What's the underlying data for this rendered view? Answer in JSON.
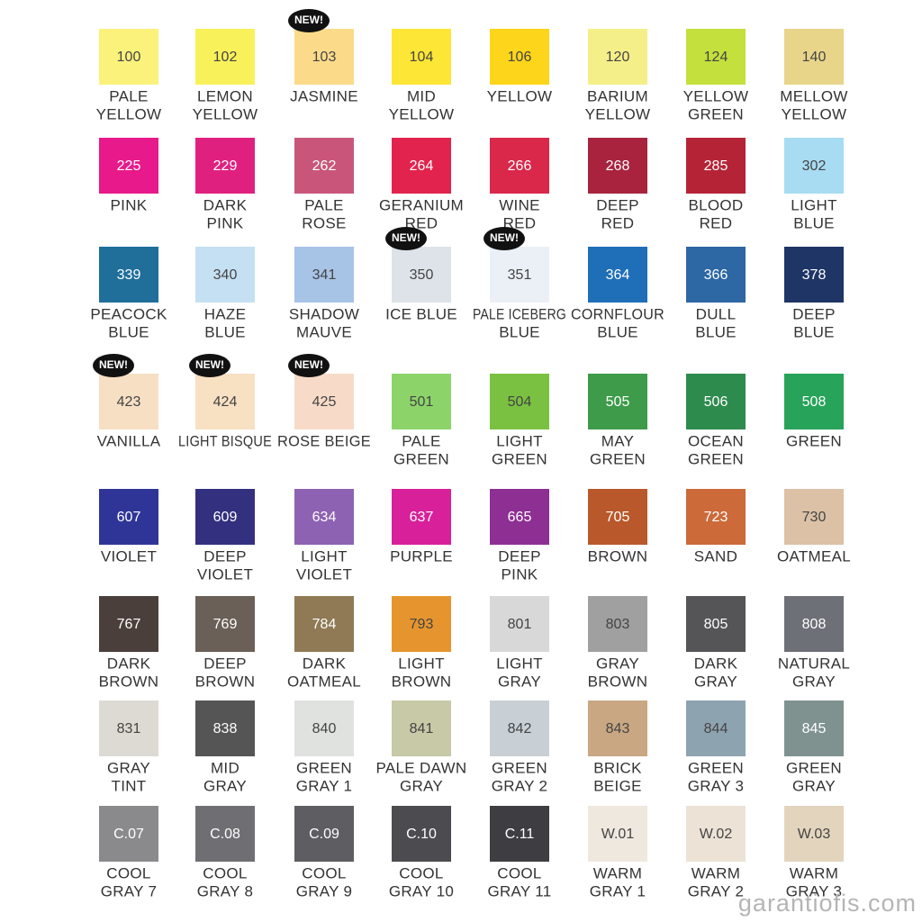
{
  "rows": [
    [
      {
        "code": "100",
        "name": [
          "PALE",
          "YELLOW"
        ],
        "color": "#fbf27c"
      },
      {
        "code": "102",
        "name": [
          "LEMON",
          "YELLOW"
        ],
        "color": "#f9f15a"
      },
      {
        "code": "103",
        "name": [
          "JASMINE"
        ],
        "color": "#fbdb8a",
        "badge": "NEW!"
      },
      {
        "code": "104",
        "name": [
          "MID",
          "YELLOW"
        ],
        "color": "#fde635"
      },
      {
        "code": "106",
        "name": [
          "YELLOW"
        ],
        "color": "#fdd51a"
      },
      {
        "code": "120",
        "name": [
          "BARIUM",
          "YELLOW"
        ],
        "color": "#f5ef8a"
      },
      {
        "code": "124",
        "name": [
          "YELLOW",
          "GREEN"
        ],
        "color": "#c3e03c"
      },
      {
        "code": "140",
        "name": [
          "MELLOW",
          "YELLOW"
        ],
        "color": "#e8d58a"
      }
    ],
    [
      {
        "code": "225",
        "name": [
          "PINK"
        ],
        "color": "#e8198b"
      },
      {
        "code": "229",
        "name": [
          "DARK",
          "PINK"
        ],
        "color": "#e0207f"
      },
      {
        "code": "262",
        "name": [
          "PALE",
          "ROSE"
        ],
        "color": "#c9567a"
      },
      {
        "code": "264",
        "name": [
          "GERANIUM",
          "RED"
        ],
        "color": "#e2234d"
      },
      {
        "code": "266",
        "name": [
          "WINE",
          "RED"
        ],
        "color": "#d9284a"
      },
      {
        "code": "268",
        "name": [
          "DEEP",
          "RED"
        ],
        "color": "#a9233f"
      },
      {
        "code": "285",
        "name": [
          "BLOOD",
          "RED"
        ],
        "color": "#b52436"
      },
      {
        "code": "302",
        "name": [
          "LIGHT",
          "BLUE"
        ],
        "color": "#a7dcf3"
      }
    ],
    [
      {
        "code": "339",
        "name": [
          "PEACOCK",
          "BLUE"
        ],
        "color": "#1f6f9a"
      },
      {
        "code": "340",
        "name": [
          "HAZE",
          "BLUE"
        ],
        "color": "#c5e0f2"
      },
      {
        "code": "341",
        "name": [
          "SHADOW",
          "MAUVE"
        ],
        "color": "#a7c3e6"
      },
      {
        "code": "350",
        "name": [
          "ICE BLUE"
        ],
        "color": "#dde3e8",
        "badge": "NEW!"
      },
      {
        "code": "351",
        "name": [
          "PALE ICEBERG",
          "BLUE"
        ],
        "color": "#eaf0f6",
        "badge": "NEW!"
      },
      {
        "code": "364",
        "name": [
          "CORNFLOUR",
          "BLUE"
        ],
        "color": "#1f6fb8"
      },
      {
        "code": "366",
        "name": [
          "DULL",
          "BLUE"
        ],
        "color": "#2d67a4"
      },
      {
        "code": "378",
        "name": [
          "DEEP",
          "BLUE"
        ],
        "color": "#1f3566"
      }
    ],
    [
      {
        "code": "423",
        "name": [
          "VANILLA"
        ],
        "color": "#f6dfc3",
        "badge": "NEW!"
      },
      {
        "code": "424",
        "name": [
          "LIGHT BISQUE"
        ],
        "color": "#f8e0c2",
        "badge": "NEW!"
      },
      {
        "code": "425",
        "name": [
          "ROSE BEIGE"
        ],
        "color": "#f7dbc8",
        "badge": "NEW!"
      },
      {
        "code": "501",
        "name": [
          "PALE",
          "GREEN"
        ],
        "color": "#8cd46a"
      },
      {
        "code": "504",
        "name": [
          "LIGHT",
          "GREEN"
        ],
        "color": "#7ac142"
      },
      {
        "code": "505",
        "name": [
          "MAY",
          "GREEN"
        ],
        "color": "#3d9b4a"
      },
      {
        "code": "506",
        "name": [
          "OCEAN",
          "GREEN"
        ],
        "color": "#2e8b4e"
      },
      {
        "code": "508",
        "name": [
          "GREEN"
        ],
        "color": "#27a35a"
      }
    ],
    [
      {
        "code": "607",
        "name": [
          "VIOLET"
        ],
        "color": "#2f3597"
      },
      {
        "code": "609",
        "name": [
          "DEEP",
          "VIOLET"
        ],
        "color": "#33307f"
      },
      {
        "code": "634",
        "name": [
          "LIGHT",
          "VIOLET"
        ],
        "color": "#8e62b2"
      },
      {
        "code": "637",
        "name": [
          "PURPLE"
        ],
        "color": "#d8209a"
      },
      {
        "code": "665",
        "name": [
          "DEEP",
          "PINK"
        ],
        "color": "#8e2f94"
      },
      {
        "code": "705",
        "name": [
          "BROWN"
        ],
        "color": "#b9582a"
      },
      {
        "code": "723",
        "name": [
          "SAND"
        ],
        "color": "#cc6a3a"
      },
      {
        "code": "730",
        "name": [
          "OATMEAL"
        ],
        "color": "#dcc1a6"
      }
    ],
    [
      {
        "code": "767",
        "name": [
          "DARK",
          "BROWN"
        ],
        "color": "#4b3f3c"
      },
      {
        "code": "769",
        "name": [
          "DEEP",
          "BROWN"
        ],
        "color": "#6a6057"
      },
      {
        "code": "784",
        "name": [
          "DARK",
          "OATMEAL"
        ],
        "color": "#8f7a55"
      },
      {
        "code": "793",
        "name": [
          "LIGHT",
          "BROWN"
        ],
        "color": "#e6952e"
      },
      {
        "code": "801",
        "name": [
          "LIGHT",
          "GRAY"
        ],
        "color": "#d8d8d8"
      },
      {
        "code": "803",
        "name": [
          "GRAY",
          "BROWN"
        ],
        "color": "#a0a0a0"
      },
      {
        "code": "805",
        "name": [
          "DARK",
          "GRAY"
        ],
        "color": "#555558"
      },
      {
        "code": "808",
        "name": [
          "NATURAL",
          "GRAY"
        ],
        "color": "#6e7078"
      }
    ],
    [
      {
        "code": "831",
        "name": [
          "GRAY",
          "TINT"
        ],
        "color": "#dcdad3"
      },
      {
        "code": "838",
        "name": [
          "MID",
          "GRAY"
        ],
        "color": "#555555"
      },
      {
        "code": "840",
        "name": [
          "GREEN",
          "GRAY 1"
        ],
        "color": "#dfe2de"
      },
      {
        "code": "841",
        "name": [
          "PALE DAWN",
          "GRAY"
        ],
        "color": "#c7c9a7"
      },
      {
        "code": "842",
        "name": [
          "GREEN",
          "GRAY 2"
        ],
        "color": "#c8d0d6"
      },
      {
        "code": "843",
        "name": [
          "BRICK",
          "BEIGE"
        ],
        "color": "#c9a783"
      },
      {
        "code": "844",
        "name": [
          "GREEN",
          "GRAY 3"
        ],
        "color": "#8ea3b0"
      },
      {
        "code": "845",
        "name": [
          "GREEN",
          "GRAY"
        ],
        "color": "#7f9290"
      }
    ],
    [
      {
        "code": "C.07",
        "name": [
          "COOL",
          "GRAY 7"
        ],
        "color": "#8a8a8c"
      },
      {
        "code": "C.08",
        "name": [
          "COOL",
          "GRAY 8"
        ],
        "color": "#6f6f73"
      },
      {
        "code": "C.09",
        "name": [
          "COOL",
          "GRAY 9"
        ],
        "color": "#5e5e62"
      },
      {
        "code": "C.10",
        "name": [
          "COOL",
          "GRAY 10"
        ],
        "color": "#4c4c50"
      },
      {
        "code": "C.11",
        "name": [
          "COOL",
          "GRAY 11"
        ],
        "color": "#3e3e42"
      },
      {
        "code": "W.01",
        "name": [
          "WARM",
          "GRAY 1"
        ],
        "color": "#efe8de"
      },
      {
        "code": "W.02",
        "name": [
          "WARM",
          "GRAY 2"
        ],
        "color": "#ece2d6"
      },
      {
        "code": "W.03",
        "name": [
          "WARM",
          "GRAY 3"
        ],
        "color": "#e3d4bd"
      }
    ]
  ],
  "watermark": "garantiofis.com"
}
